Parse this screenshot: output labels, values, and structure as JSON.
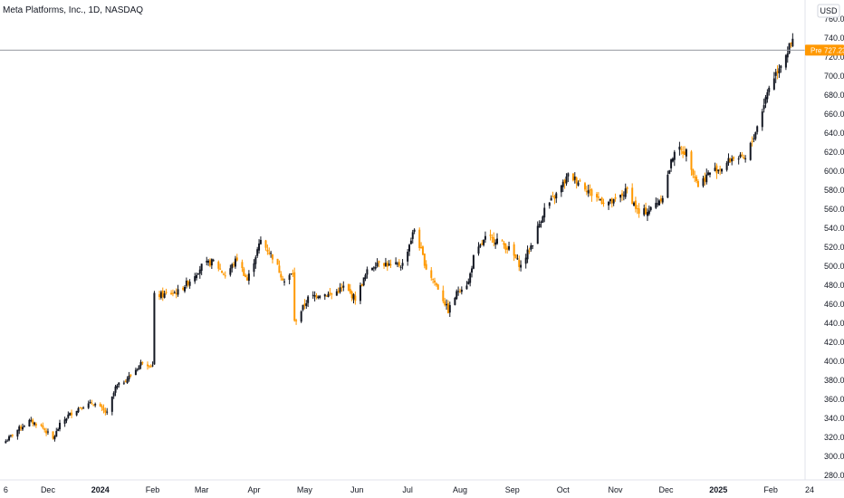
{
  "header": {
    "symbol_title": "Meta Platforms, Inc., 1D, NASDAQ",
    "currency": "USD"
  },
  "price_badge": {
    "label": "Pre",
    "value": "727.23",
    "color": "#ff9800"
  },
  "colors": {
    "up": "#131722",
    "down": "#ff9800",
    "last_price_line": "#9598a1"
  },
  "chart_data": {
    "type": "candlestick",
    "title": "Meta Platforms, Inc., 1D, NASDAQ",
    "ylabel": "USD",
    "ylim": [
      270,
      760
    ],
    "y_ticks": [
      "760.00",
      "740.00",
      "720.00",
      "700.00",
      "680.00",
      "660.00",
      "640.00",
      "620.00",
      "600.00",
      "580.00",
      "560.00",
      "540.00",
      "520.00",
      "500.00",
      "480.00",
      "460.00",
      "440.00",
      "420.00",
      "400.00",
      "380.00",
      "360.00",
      "340.00",
      "320.00",
      "300.00",
      "280.00"
    ],
    "x_ticks": [
      {
        "label": "6",
        "date": "2023-11-06"
      },
      {
        "label": "Dec",
        "date": "2023-12-01"
      },
      {
        "label": "2024",
        "date": "2024-01-01",
        "bold": true
      },
      {
        "label": "Feb",
        "date": "2024-02-01"
      },
      {
        "label": "Mar",
        "date": "2024-03-01"
      },
      {
        "label": "Apr",
        "date": "2024-04-01"
      },
      {
        "label": "May",
        "date": "2024-05-01"
      },
      {
        "label": "Jun",
        "date": "2024-06-01"
      },
      {
        "label": "Jul",
        "date": "2024-07-01"
      },
      {
        "label": "Aug",
        "date": "2024-08-01"
      },
      {
        "label": "Sep",
        "date": "2024-09-01"
      },
      {
        "label": "Oct",
        "date": "2024-10-01"
      },
      {
        "label": "Nov",
        "date": "2024-11-01"
      },
      {
        "label": "Dec",
        "date": "2024-12-01"
      },
      {
        "label": "2025",
        "date": "2025-01-01",
        "bold": true
      },
      {
        "label": "Feb",
        "date": "2025-02-01"
      },
      {
        "label": "24",
        "date": "2025-02-24"
      }
    ],
    "last_price": 727.23,
    "anchors": [
      [
        "2023-11-06",
        316
      ],
      [
        "2023-11-13",
        328
      ],
      [
        "2023-11-20",
        337
      ],
      [
        "2023-11-27",
        332
      ],
      [
        "2023-12-04",
        318
      ],
      [
        "2023-12-08",
        333
      ],
      [
        "2023-12-13",
        343
      ],
      [
        "2023-12-20",
        352
      ],
      [
        "2023-12-28",
        356
      ],
      [
        "2024-01-05",
        345
      ],
      [
        "2024-01-10",
        372
      ],
      [
        "2024-01-19",
        385
      ],
      [
        "2024-01-26",
        400
      ],
      [
        "2024-02-01",
        395
      ],
      [
        "2024-02-02",
        469
      ],
      [
        "2024-02-08",
        470
      ],
      [
        "2024-02-16",
        473
      ],
      [
        "2024-02-23",
        485
      ],
      [
        "2024-03-01",
        500
      ],
      [
        "2024-03-08",
        505
      ],
      [
        "2024-03-15",
        490
      ],
      [
        "2024-03-22",
        508
      ],
      [
        "2024-03-28",
        485
      ],
      [
        "2024-04-05",
        527
      ],
      [
        "2024-04-12",
        510
      ],
      [
        "2024-04-19",
        484
      ],
      [
        "2024-04-24",
        493
      ],
      [
        "2024-04-25",
        441
      ],
      [
        "2024-05-03",
        466
      ],
      [
        "2024-05-10",
        471
      ],
      [
        "2024-05-17",
        470
      ],
      [
        "2024-05-24",
        478
      ],
      [
        "2024-05-31",
        466
      ],
      [
        "2024-06-07",
        494
      ],
      [
        "2024-06-14",
        506
      ],
      [
        "2024-06-21",
        500
      ],
      [
        "2024-06-28",
        502
      ],
      [
        "2024-07-05",
        539
      ],
      [
        "2024-07-12",
        498
      ],
      [
        "2024-07-19",
        477
      ],
      [
        "2024-07-25",
        453
      ],
      [
        "2024-07-31",
        475
      ],
      [
        "2024-08-06",
        483
      ],
      [
        "2024-08-09",
        509
      ],
      [
        "2024-08-16",
        529
      ],
      [
        "2024-08-23",
        528
      ],
      [
        "2024-08-30",
        518
      ],
      [
        "2024-09-06",
        500
      ],
      [
        "2024-09-13",
        525
      ],
      [
        "2024-09-20",
        560
      ],
      [
        "2024-09-27",
        575
      ],
      [
        "2024-10-04",
        595
      ],
      [
        "2024-10-11",
        589
      ],
      [
        "2024-10-18",
        576
      ],
      [
        "2024-10-25",
        568
      ],
      [
        "2024-10-31",
        567
      ],
      [
        "2024-11-08",
        580
      ],
      [
        "2024-11-15",
        555
      ],
      [
        "2024-11-22",
        560
      ],
      [
        "2024-11-29",
        574
      ],
      [
        "2024-12-06",
        623
      ],
      [
        "2024-12-13",
        620
      ],
      [
        "2024-12-20",
        585
      ],
      [
        "2024-12-27",
        599
      ],
      [
        "2025-01-03",
        604
      ],
      [
        "2025-01-10",
        615
      ],
      [
        "2025-01-17",
        612
      ],
      [
        "2025-01-24",
        647
      ],
      [
        "2025-01-31",
        689
      ],
      [
        "2025-02-07",
        714
      ],
      [
        "2025-02-14",
        736
      ]
    ]
  }
}
